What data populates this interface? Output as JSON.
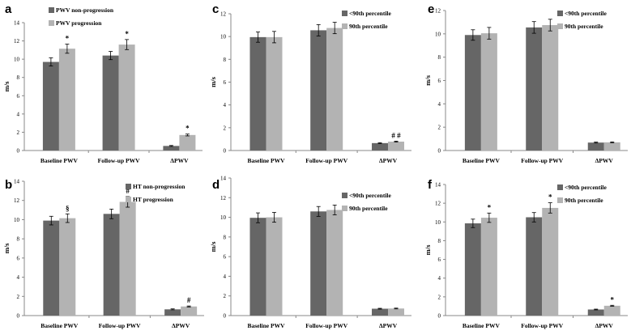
{
  "figure": {
    "background": "#ffffff"
  },
  "colors": {
    "series1": "#666666",
    "series2": "#b3b3b3",
    "axis": "#888888",
    "text": "#000000"
  },
  "chart_data": [
    {
      "panel": "a",
      "type": "bar",
      "ylabel": "m/s",
      "ylim": [
        0,
        14
      ],
      "yticks": [
        0,
        2,
        4,
        6,
        8,
        10,
        12,
        14
      ],
      "categories": [
        "Baseline PWV",
        "Follow-up PWV",
        "ΔPWV"
      ],
      "legend_position": "top-left",
      "series": [
        {
          "name": "PWV non-progression",
          "values": [
            9.7,
            10.4,
            0.5
          ],
          "errors": [
            0.45,
            0.45,
            0.05
          ]
        },
        {
          "name": "PWV progression",
          "values": [
            11.15,
            11.6,
            1.7
          ],
          "errors": [
            0.5,
            0.55,
            0.1
          ]
        }
      ],
      "annotations": [
        {
          "category": 0,
          "series": 1,
          "text": "*"
        },
        {
          "category": 1,
          "series": 1,
          "text": "*"
        },
        {
          "category": 2,
          "series": 1,
          "text": "*"
        }
      ]
    },
    {
      "panel": "b",
      "type": "bar",
      "ylabel": "m/s",
      "ylim": [
        0,
        14
      ],
      "yticks": [
        0,
        2,
        4,
        6,
        8,
        10,
        12,
        14
      ],
      "categories": [
        "Baseline PWV",
        "Follow-up PWV",
        "ΔPWV"
      ],
      "legend_position": "top-left",
      "series": [
        {
          "name": "HT non-progression",
          "values": [
            9.9,
            10.6,
            0.65
          ],
          "errors": [
            0.45,
            0.5,
            0.05
          ]
        },
        {
          "name": "HT progression",
          "values": [
            10.15,
            11.85,
            0.95
          ],
          "errors": [
            0.45,
            0.55,
            0.05
          ]
        }
      ],
      "annotations": [
        {
          "category": 0,
          "series": 1,
          "text": "§"
        },
        {
          "category": 1,
          "series": 1,
          "text": "#"
        },
        {
          "category": 2,
          "series": 1,
          "text": "#"
        }
      ]
    },
    {
      "panel": "c",
      "type": "bar",
      "ylabel": "m/s",
      "ylim": [
        0,
        12
      ],
      "yticks": [
        0,
        2,
        4,
        6,
        8,
        10,
        12
      ],
      "categories": [
        "Baseline PWV",
        "Follow-up PWV",
        "ΔPWV"
      ],
      "legend_position": "top-right",
      "series": [
        {
          "name": "<90th percentile",
          "values": [
            9.95,
            10.55,
            0.65
          ],
          "errors": [
            0.45,
            0.5,
            0.04
          ]
        },
        {
          "name": "90th percentile",
          "values": [
            9.95,
            10.75,
            0.78
          ],
          "errors": [
            0.5,
            0.5,
            0.04
          ]
        }
      ],
      "annotations": [
        {
          "category": 2,
          "series": 1,
          "text": "# #"
        }
      ]
    },
    {
      "panel": "d",
      "type": "bar",
      "ylabel": "m/s",
      "ylim": [
        0,
        14
      ],
      "yticks": [
        0,
        2,
        4,
        6,
        8,
        10,
        12,
        14
      ],
      "categories": [
        "Baseline PWV",
        "Follow-up PWV",
        "ΔPWV"
      ],
      "legend_position": "top-right",
      "series": [
        {
          "name": "<90th percentile",
          "values": [
            9.95,
            10.6,
            0.7
          ],
          "errors": [
            0.5,
            0.5,
            0.04
          ]
        },
        {
          "name": "90th percentile",
          "values": [
            10.0,
            10.75,
            0.72
          ],
          "errors": [
            0.5,
            0.5,
            0.04
          ]
        }
      ],
      "annotations": []
    },
    {
      "panel": "e",
      "type": "bar",
      "ylabel": "m/s",
      "ylim": [
        0,
        12
      ],
      "yticks": [
        0,
        2,
        4,
        6,
        8,
        10,
        12
      ],
      "categories": [
        "Baseline PWV",
        "Follow-up PWV",
        "ΔPWV"
      ],
      "legend_position": "top-right",
      "series": [
        {
          "name": "<90th percentile",
          "values": [
            9.9,
            10.55,
            0.68
          ],
          "errors": [
            0.45,
            0.5,
            0.04
          ]
        },
        {
          "name": "90th percentile",
          "values": [
            10.05,
            10.75,
            0.7
          ],
          "errors": [
            0.5,
            0.5,
            0.04
          ]
        }
      ],
      "annotations": []
    },
    {
      "panel": "f",
      "type": "bar",
      "ylabel": "m/s",
      "ylim": [
        0,
        14
      ],
      "yticks": [
        0,
        2,
        4,
        6,
        8,
        10,
        12,
        14
      ],
      "categories": [
        "Baseline PWV",
        "Follow-up PWV",
        "ΔPWV"
      ],
      "legend_position": "top-right",
      "series": [
        {
          "name": "<90th percentile",
          "values": [
            9.85,
            10.5,
            0.65
          ],
          "errors": [
            0.45,
            0.5,
            0.04
          ]
        },
        {
          "name": "90th percentile",
          "values": [
            10.45,
            11.5,
            1.05
          ],
          "errors": [
            0.5,
            0.55,
            0.05
          ]
        }
      ],
      "annotations": [
        {
          "category": 0,
          "series": 1,
          "text": "*"
        },
        {
          "category": 1,
          "series": 1,
          "text": "*"
        },
        {
          "category": 2,
          "series": 1,
          "text": "*"
        }
      ]
    }
  ]
}
